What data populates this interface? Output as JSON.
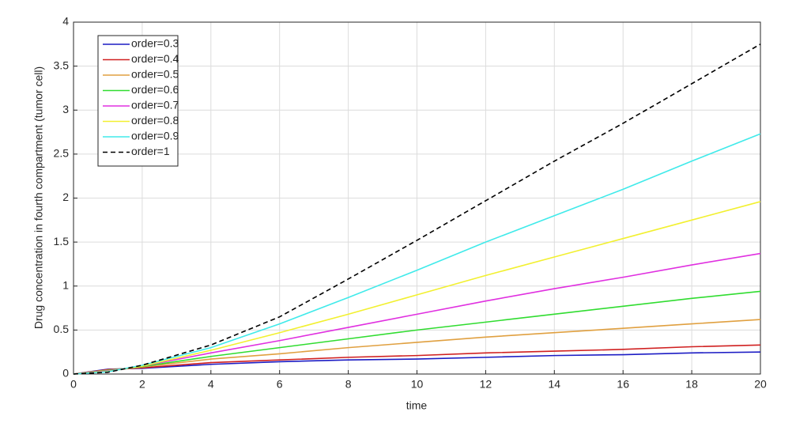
{
  "chart_data": {
    "type": "line",
    "xlabel": "time",
    "ylabel": "Drug concentration in fourth compartment (tumor cell)",
    "x": [
      0,
      1,
      2,
      4,
      6,
      8,
      10,
      12,
      14,
      16,
      18,
      20
    ],
    "xlim": [
      0,
      20
    ],
    "xticks": [
      0,
      2,
      4,
      6,
      8,
      10,
      12,
      14,
      16,
      18,
      20
    ],
    "ylim": [
      0,
      4
    ],
    "yticks": [
      0,
      0.5,
      1,
      1.5,
      2,
      2.5,
      3,
      3.5,
      4
    ],
    "grid": true,
    "legend": "upper left",
    "series": [
      {
        "name": "order=0.3",
        "color": "#1c1cc4",
        "dash": "solid",
        "values": [
          0,
          0.055,
          0.065,
          0.11,
          0.14,
          0.16,
          0.17,
          0.19,
          0.21,
          0.22,
          0.24,
          0.25
        ]
      },
      {
        "name": "order=0.4",
        "color": "#d02020",
        "dash": "solid",
        "values": [
          0,
          0.05,
          0.07,
          0.13,
          0.16,
          0.19,
          0.21,
          0.24,
          0.26,
          0.28,
          0.31,
          0.33
        ]
      },
      {
        "name": "order=0.5",
        "color": "#e0a040",
        "dash": "solid",
        "values": [
          0,
          0.045,
          0.08,
          0.17,
          0.23,
          0.3,
          0.36,
          0.42,
          0.47,
          0.52,
          0.57,
          0.62
        ]
      },
      {
        "name": "order=0.6",
        "color": "#30dc30",
        "dash": "solid",
        "values": [
          0,
          0.04,
          0.085,
          0.2,
          0.3,
          0.4,
          0.5,
          0.59,
          0.68,
          0.77,
          0.86,
          0.94
        ]
      },
      {
        "name": "order=0.7",
        "color": "#e030e0",
        "dash": "solid",
        "values": [
          0,
          0.035,
          0.09,
          0.24,
          0.38,
          0.53,
          0.68,
          0.83,
          0.97,
          1.1,
          1.24,
          1.37
        ]
      },
      {
        "name": "order=0.8",
        "color": "#f2f030",
        "dash": "solid",
        "values": [
          0,
          0.03,
          0.09,
          0.27,
          0.47,
          0.68,
          0.9,
          1.12,
          1.33,
          1.54,
          1.75,
          1.96
        ]
      },
      {
        "name": "order=0.9",
        "color": "#40eaea",
        "dash": "solid",
        "values": [
          0,
          0.025,
          0.1,
          0.3,
          0.57,
          0.87,
          1.18,
          1.5,
          1.8,
          2.1,
          2.42,
          2.73
        ]
      },
      {
        "name": "order=1",
        "color": "#000000",
        "dash": "dashed",
        "values": [
          0,
          0.02,
          0.1,
          0.33,
          0.65,
          1.08,
          1.52,
          1.97,
          2.42,
          2.85,
          3.3,
          3.75
        ]
      }
    ]
  }
}
